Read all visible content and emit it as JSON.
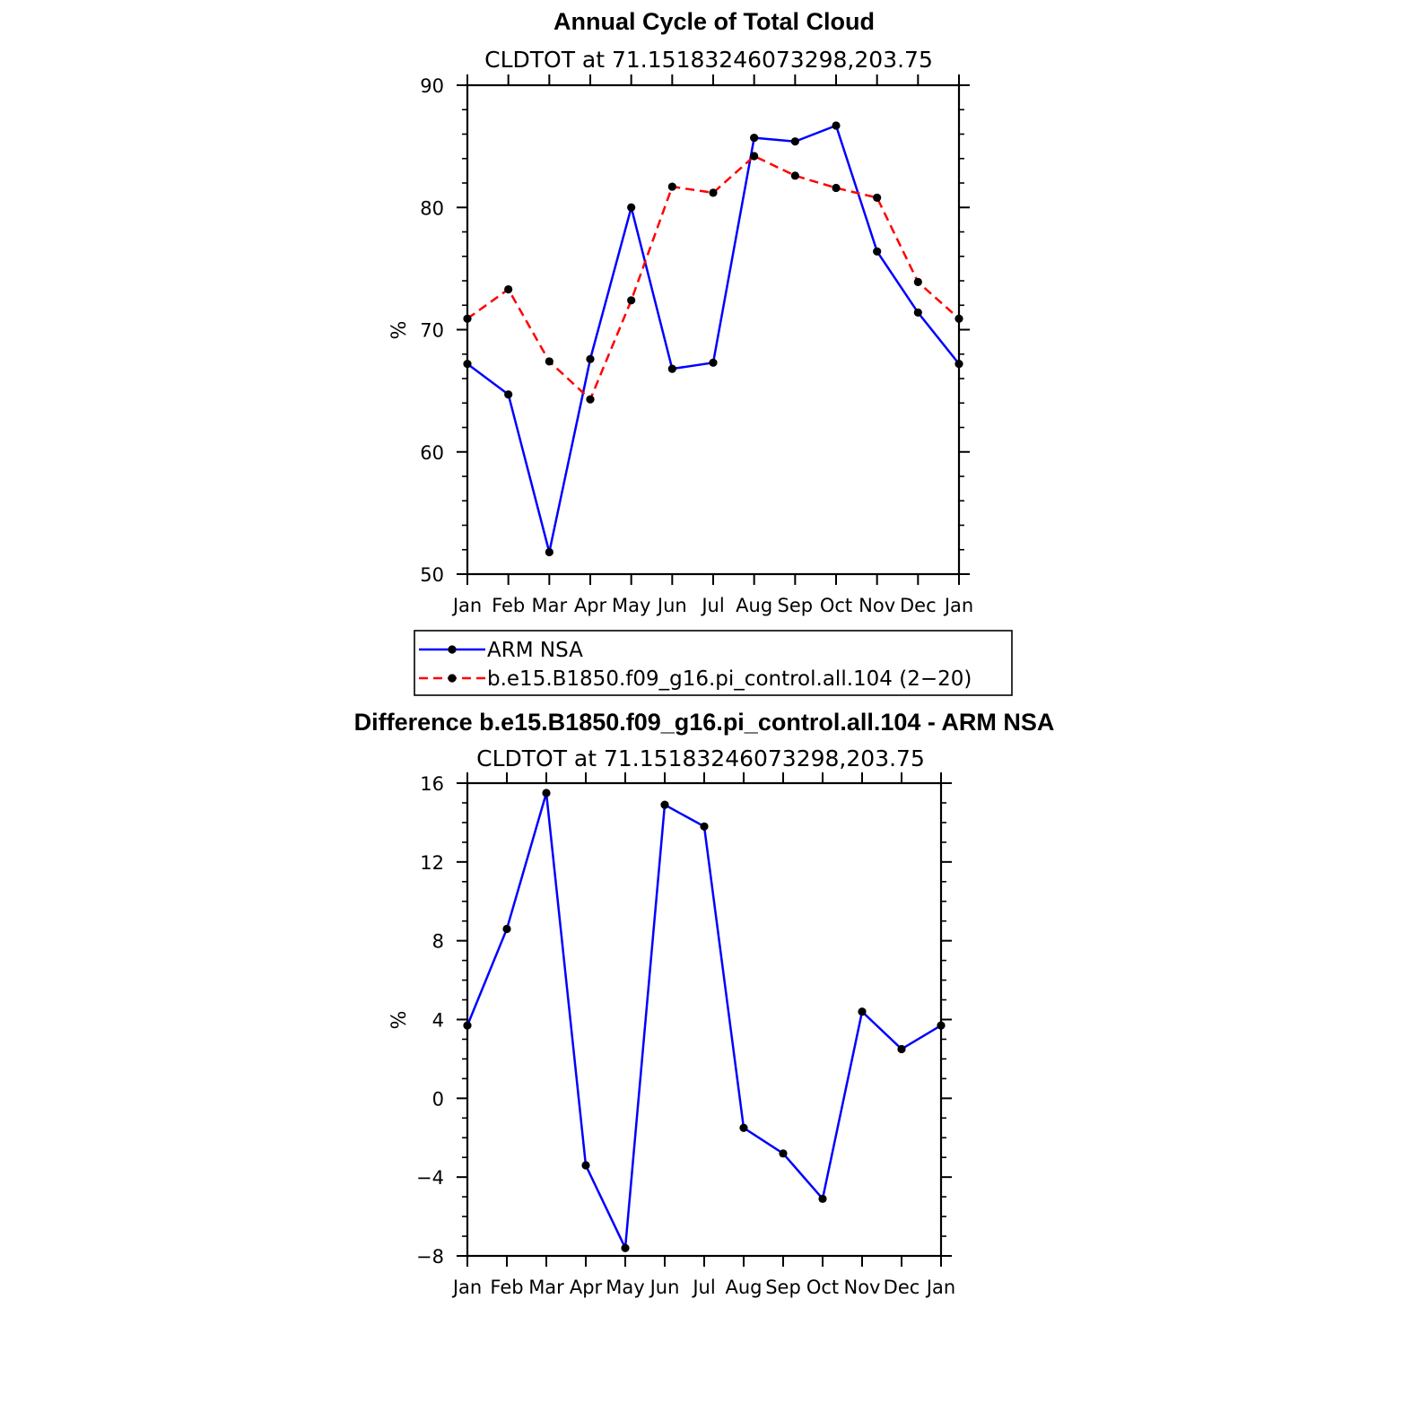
{
  "chart_data": [
    {
      "type": "line",
      "title": "Annual Cycle of Total Cloud",
      "subtitle": "CLDTOT at 71.15183246073298,203.75",
      "xlabel": "",
      "ylabel": "%",
      "categories": [
        "Jan",
        "Feb",
        "Mar",
        "Apr",
        "May",
        "Jun",
        "Jul",
        "Aug",
        "Sep",
        "Oct",
        "Nov",
        "Dec",
        "Jan"
      ],
      "ylim": [
        50,
        90
      ],
      "yticks": [
        "90",
        "80",
        "70",
        "60",
        "50"
      ],
      "grid": false,
      "legend": "below",
      "series": [
        {
          "name": "ARM NSA",
          "color": "#0000ff",
          "dash": "solid",
          "values": [
            67.2,
            64.7,
            51.8,
            67.6,
            80.0,
            66.8,
            67.3,
            85.7,
            85.4,
            86.7,
            76.4,
            71.4,
            67.2
          ]
        },
        {
          "name": "b.e15.B1850.f09_g16.pi_control.all.104 (2−20)",
          "color": "#ff0000",
          "dash": "dashed",
          "values": [
            70.9,
            73.3,
            67.4,
            64.3,
            72.4,
            81.7,
            81.2,
            84.2,
            82.6,
            81.6,
            80.8,
            73.9,
            70.9
          ]
        }
      ]
    },
    {
      "type": "line",
      "title": "Difference b.e15.B1850.f09_g16.pi_control.all.104 - ARM NSA",
      "subtitle": "CLDTOT at 71.15183246073298,203.75",
      "xlabel": "",
      "ylabel": "%",
      "categories": [
        "Jan",
        "Feb",
        "Mar",
        "Apr",
        "May",
        "Jun",
        "Jul",
        "Aug",
        "Sep",
        "Oct",
        "Nov",
        "Dec",
        "Jan"
      ],
      "ylim": [
        -8,
        16
      ],
      "yticks": [
        "16",
        "12",
        "8",
        "4",
        "0",
        "−4",
        "−8"
      ],
      "grid": false,
      "series": [
        {
          "color": "#0000ff",
          "dash": "solid",
          "values": [
            3.7,
            8.6,
            15.5,
            -3.4,
            -7.6,
            14.9,
            13.8,
            -1.5,
            -2.8,
            -5.1,
            4.4,
            2.5,
            3.7
          ]
        }
      ]
    }
  ]
}
